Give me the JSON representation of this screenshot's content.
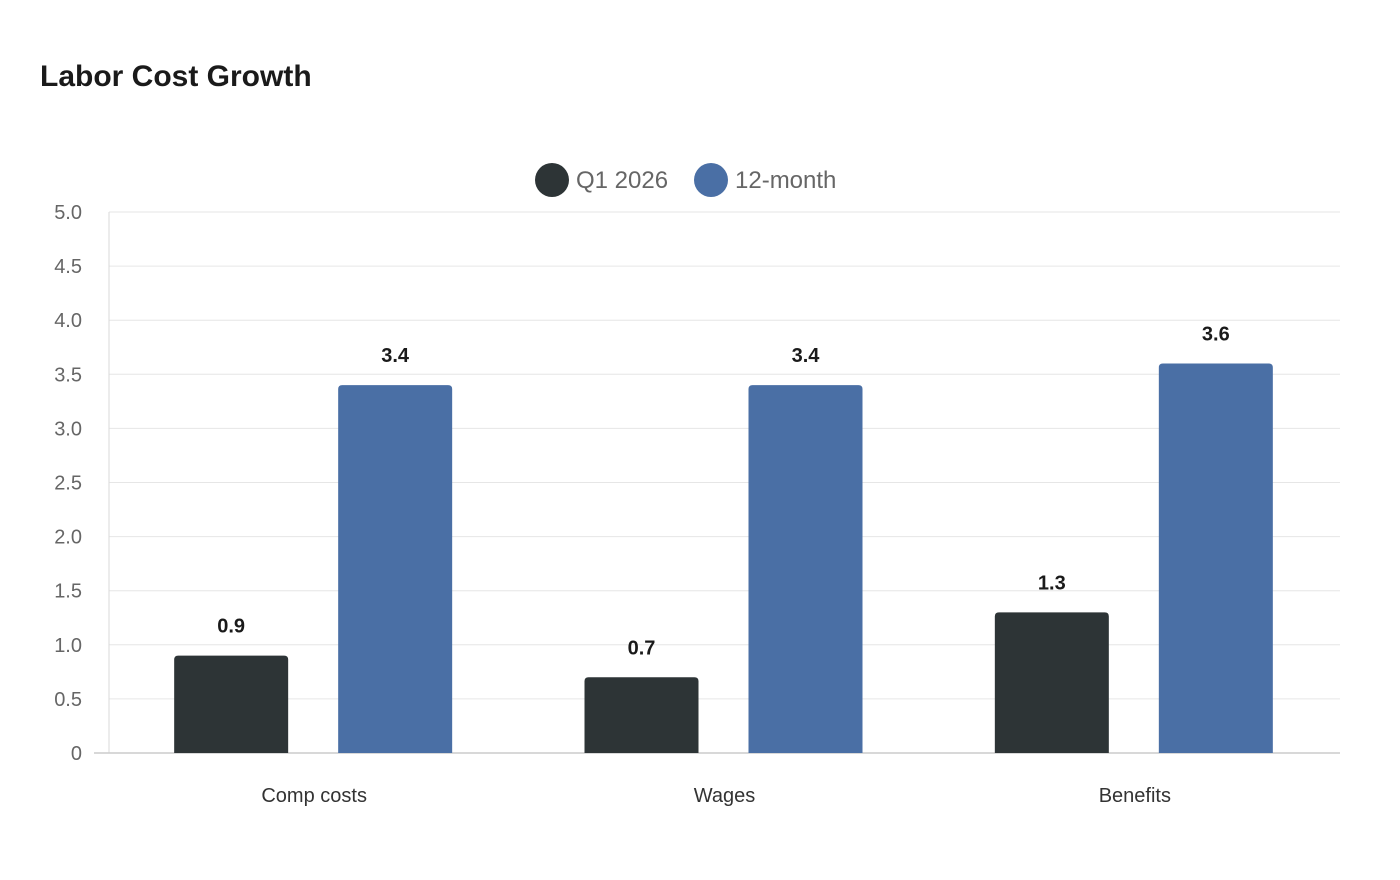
{
  "chart_data": {
    "type": "bar",
    "title": "Labor Cost Growth",
    "categories": [
      "Comp costs",
      "Wages",
      "Benefits"
    ],
    "series": [
      {
        "name": "Q1 2026",
        "values": [
          0.9,
          0.7,
          1.3
        ],
        "color": "#2d3436"
      },
      {
        "name": "12-month",
        "values": [
          3.4,
          3.4,
          3.6
        ],
        "color": "#4a6fa5"
      }
    ],
    "ylim": [
      0,
      5.0
    ],
    "yticks": [
      "0",
      "0.5",
      "1.0",
      "1.5",
      "2.0",
      "2.5",
      "3.0",
      "3.5",
      "4.0",
      "4.5",
      "5.0"
    ],
    "xlabel": "",
    "ylabel": "",
    "grid": true,
    "legend": "top-center",
    "data_labels": true
  }
}
